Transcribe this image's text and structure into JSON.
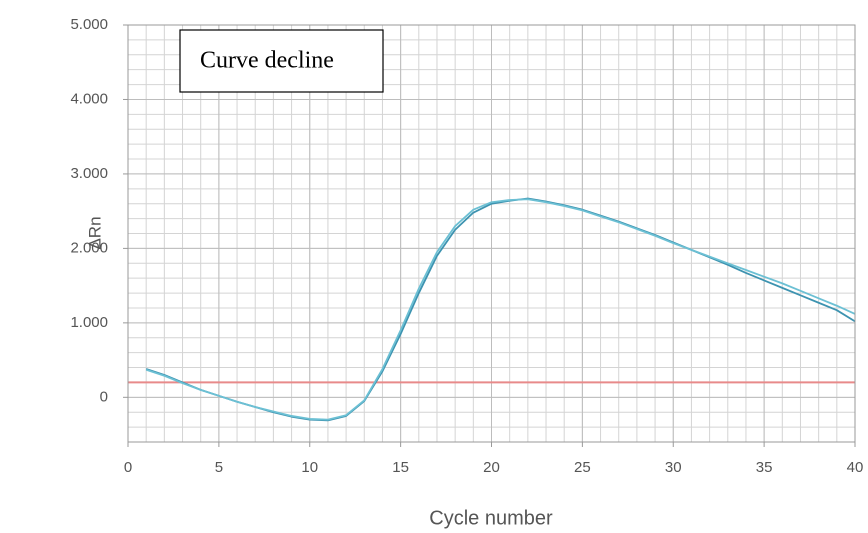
{
  "chart_data": {
    "type": "line",
    "annotation": "Curve decline",
    "x_label": "Cycle number",
    "y_label": "ΔRn",
    "x": [
      1,
      2,
      3,
      4,
      5,
      6,
      7,
      8,
      9,
      10,
      11,
      12,
      13,
      14,
      15,
      16,
      17,
      18,
      19,
      20,
      21,
      22,
      23,
      24,
      25,
      26,
      27,
      28,
      29,
      30,
      31,
      32,
      33,
      34,
      35,
      36,
      37,
      38,
      39,
      40
    ],
    "series": [
      {
        "color": "#3d93b0",
        "values": [
          0.38,
          0.3,
          0.2,
          0.1,
          0.02,
          -0.06,
          -0.13,
          -0.2,
          -0.26,
          -0.3,
          -0.31,
          -0.25,
          -0.05,
          0.35,
          0.85,
          1.4,
          1.9,
          2.25,
          2.48,
          2.6,
          2.64,
          2.67,
          2.63,
          2.58,
          2.52,
          2.44,
          2.36,
          2.27,
          2.18,
          2.08,
          1.98,
          1.88,
          1.78,
          1.67,
          1.57,
          1.47,
          1.37,
          1.27,
          1.17,
          1.02
        ]
      },
      {
        "color": "#6cc0d4",
        "values": [
          0.37,
          0.29,
          0.19,
          0.1,
          0.02,
          -0.06,
          -0.13,
          -0.19,
          -0.25,
          -0.29,
          -0.3,
          -0.24,
          -0.04,
          0.38,
          0.9,
          1.46,
          1.95,
          2.3,
          2.52,
          2.62,
          2.65,
          2.66,
          2.62,
          2.57,
          2.51,
          2.43,
          2.35,
          2.26,
          2.17,
          2.07,
          1.98,
          1.89,
          1.8,
          1.71,
          1.62,
          1.53,
          1.43,
          1.33,
          1.23,
          1.12
        ]
      }
    ],
    "threshold": 0.2,
    "threshold_color": "#e88a8a",
    "xlim": [
      0,
      40
    ],
    "xticks": [
      0,
      5,
      10,
      15,
      20,
      25,
      30,
      35,
      40
    ],
    "ylim": [
      -0.6,
      5
    ],
    "yticks": [
      0,
      {
        "value": 1,
        "label": "1.000"
      },
      {
        "value": 2,
        "label": "2.000"
      },
      {
        "value": 3,
        "label": "3.000"
      },
      {
        "value": 4,
        "label": "4.000"
      },
      {
        "value": 5,
        "label": "5.000"
      }
    ],
    "grid": true
  }
}
